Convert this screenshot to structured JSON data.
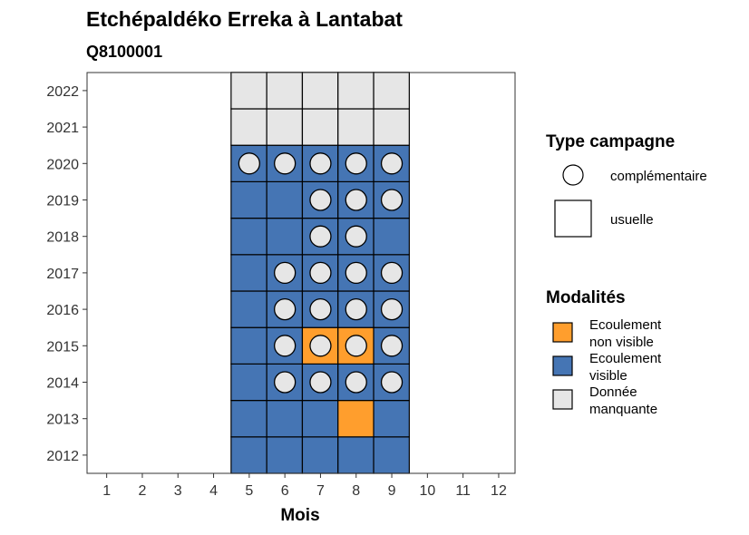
{
  "chart_data": {
    "type": "heatmap",
    "title": "Etchépaldéko Erreka à Lantabat",
    "subtitle": "Q8100001",
    "xlabel": "Mois",
    "ylabel": "",
    "x_categories": [
      "1",
      "2",
      "3",
      "4",
      "5",
      "6",
      "7",
      "8",
      "9",
      "10",
      "11",
      "12"
    ],
    "y_categories": [
      "2012",
      "2013",
      "2014",
      "2015",
      "2016",
      "2017",
      "2018",
      "2019",
      "2020",
      "2021",
      "2022"
    ],
    "grid": false,
    "legend_placement": "right",
    "modalites": [
      {
        "key": "nv",
        "label_lines": [
          "Ecoulement",
          "non visible"
        ],
        "color": "#ff9e2d"
      },
      {
        "key": "v",
        "label_lines": [
          "Ecoulement",
          "visible"
        ],
        "color": "#4575b4"
      },
      {
        "key": "na",
        "label_lines": [
          "Donnée",
          "manquante"
        ],
        "color": "#e6e6e6"
      }
    ],
    "campagnes": [
      {
        "key": "complementaire",
        "label": "complémentaire",
        "shape": "circle"
      },
      {
        "key": "usuelle",
        "label": "usuelle",
        "shape": "square"
      }
    ],
    "cells": [
      {
        "year": "2012",
        "month": "5",
        "modalite": "v",
        "campagne": "usuelle"
      },
      {
        "year": "2012",
        "month": "6",
        "modalite": "v",
        "campagne": "usuelle"
      },
      {
        "year": "2012",
        "month": "7",
        "modalite": "v",
        "campagne": "usuelle"
      },
      {
        "year": "2012",
        "month": "8",
        "modalite": "v",
        "campagne": "usuelle"
      },
      {
        "year": "2012",
        "month": "9",
        "modalite": "v",
        "campagne": "usuelle"
      },
      {
        "year": "2013",
        "month": "5",
        "modalite": "v",
        "campagne": "usuelle"
      },
      {
        "year": "2013",
        "month": "6",
        "modalite": "v",
        "campagne": "usuelle"
      },
      {
        "year": "2013",
        "month": "7",
        "modalite": "v",
        "campagne": "usuelle"
      },
      {
        "year": "2013",
        "month": "8",
        "modalite": "nv",
        "campagne": "usuelle"
      },
      {
        "year": "2013",
        "month": "9",
        "modalite": "v",
        "campagne": "usuelle"
      },
      {
        "year": "2014",
        "month": "5",
        "modalite": "v",
        "campagne": "usuelle"
      },
      {
        "year": "2014",
        "month": "6",
        "modalite": "v",
        "campagne": "usuelle"
      },
      {
        "year": "2014",
        "month": "7",
        "modalite": "v",
        "campagne": "usuelle"
      },
      {
        "year": "2014",
        "month": "8",
        "modalite": "v",
        "campagne": "usuelle"
      },
      {
        "year": "2014",
        "month": "9",
        "modalite": "v",
        "campagne": "usuelle"
      },
      {
        "year": "2015",
        "month": "5",
        "modalite": "v",
        "campagne": "usuelle"
      },
      {
        "year": "2015",
        "month": "6",
        "modalite": "v",
        "campagne": "usuelle"
      },
      {
        "year": "2015",
        "month": "7",
        "modalite": "nv",
        "campagne": "usuelle"
      },
      {
        "year": "2015",
        "month": "8",
        "modalite": "nv",
        "campagne": "usuelle"
      },
      {
        "year": "2015",
        "month": "9",
        "modalite": "v",
        "campagne": "usuelle"
      },
      {
        "year": "2016",
        "month": "5",
        "modalite": "v",
        "campagne": "usuelle"
      },
      {
        "year": "2016",
        "month": "6",
        "modalite": "v",
        "campagne": "usuelle"
      },
      {
        "year": "2016",
        "month": "7",
        "modalite": "v",
        "campagne": "usuelle"
      },
      {
        "year": "2016",
        "month": "8",
        "modalite": "v",
        "campagne": "usuelle"
      },
      {
        "year": "2016",
        "month": "9",
        "modalite": "v",
        "campagne": "usuelle"
      },
      {
        "year": "2017",
        "month": "5",
        "modalite": "v",
        "campagne": "usuelle"
      },
      {
        "year": "2017",
        "month": "6",
        "modalite": "v",
        "campagne": "usuelle"
      },
      {
        "year": "2017",
        "month": "7",
        "modalite": "v",
        "campagne": "usuelle"
      },
      {
        "year": "2017",
        "month": "8",
        "modalite": "v",
        "campagne": "usuelle"
      },
      {
        "year": "2017",
        "month": "9",
        "modalite": "v",
        "campagne": "usuelle"
      },
      {
        "year": "2018",
        "month": "5",
        "modalite": "v",
        "campagne": "usuelle"
      },
      {
        "year": "2018",
        "month": "6",
        "modalite": "v",
        "campagne": "usuelle"
      },
      {
        "year": "2018",
        "month": "7",
        "modalite": "v",
        "campagne": "usuelle"
      },
      {
        "year": "2018",
        "month": "8",
        "modalite": "v",
        "campagne": "usuelle"
      },
      {
        "year": "2018",
        "month": "9",
        "modalite": "v",
        "campagne": "usuelle"
      },
      {
        "year": "2019",
        "month": "5",
        "modalite": "v",
        "campagne": "usuelle"
      },
      {
        "year": "2019",
        "month": "6",
        "modalite": "v",
        "campagne": "usuelle"
      },
      {
        "year": "2019",
        "month": "7",
        "modalite": "v",
        "campagne": "usuelle"
      },
      {
        "year": "2019",
        "month": "8",
        "modalite": "v",
        "campagne": "usuelle"
      },
      {
        "year": "2019",
        "month": "9",
        "modalite": "v",
        "campagne": "usuelle"
      },
      {
        "year": "2020",
        "month": "5",
        "modalite": "v",
        "campagne": "usuelle"
      },
      {
        "year": "2020",
        "month": "6",
        "modalite": "v",
        "campagne": "usuelle"
      },
      {
        "year": "2020",
        "month": "7",
        "modalite": "v",
        "campagne": "usuelle"
      },
      {
        "year": "2020",
        "month": "8",
        "modalite": "v",
        "campagne": "usuelle"
      },
      {
        "year": "2020",
        "month": "9",
        "modalite": "v",
        "campagne": "usuelle"
      },
      {
        "year": "2021",
        "month": "5",
        "modalite": "na",
        "campagne": "usuelle"
      },
      {
        "year": "2021",
        "month": "6",
        "modalite": "na",
        "campagne": "usuelle"
      },
      {
        "year": "2021",
        "month": "7",
        "modalite": "na",
        "campagne": "usuelle"
      },
      {
        "year": "2021",
        "month": "8",
        "modalite": "na",
        "campagne": "usuelle"
      },
      {
        "year": "2021",
        "month": "9",
        "modalite": "na",
        "campagne": "usuelle"
      },
      {
        "year": "2022",
        "month": "5",
        "modalite": "na",
        "campagne": "usuelle"
      },
      {
        "year": "2022",
        "month": "6",
        "modalite": "na",
        "campagne": "usuelle"
      },
      {
        "year": "2022",
        "month": "7",
        "modalite": "na",
        "campagne": "usuelle"
      },
      {
        "year": "2022",
        "month": "8",
        "modalite": "na",
        "campagne": "usuelle"
      },
      {
        "year": "2022",
        "month": "9",
        "modalite": "na",
        "campagne": "usuelle"
      }
    ],
    "circles": [
      {
        "year": "2014",
        "month": "6",
        "modalite": "na",
        "campagne": "complementaire"
      },
      {
        "year": "2014",
        "month": "7",
        "modalite": "na",
        "campagne": "complementaire"
      },
      {
        "year": "2014",
        "month": "8",
        "modalite": "na",
        "campagne": "complementaire"
      },
      {
        "year": "2014",
        "month": "9",
        "modalite": "na",
        "campagne": "complementaire"
      },
      {
        "year": "2015",
        "month": "6",
        "modalite": "na",
        "campagne": "complementaire"
      },
      {
        "year": "2015",
        "month": "7",
        "modalite": "na",
        "campagne": "complementaire"
      },
      {
        "year": "2015",
        "month": "8",
        "modalite": "na",
        "campagne": "complementaire"
      },
      {
        "year": "2015",
        "month": "9",
        "modalite": "na",
        "campagne": "complementaire"
      },
      {
        "year": "2016",
        "month": "6",
        "modalite": "na",
        "campagne": "complementaire"
      },
      {
        "year": "2016",
        "month": "7",
        "modalite": "na",
        "campagne": "complementaire"
      },
      {
        "year": "2016",
        "month": "8",
        "modalite": "na",
        "campagne": "complementaire"
      },
      {
        "year": "2016",
        "month": "9",
        "modalite": "na",
        "campagne": "complementaire"
      },
      {
        "year": "2017",
        "month": "6",
        "modalite": "na",
        "campagne": "complementaire"
      },
      {
        "year": "2017",
        "month": "7",
        "modalite": "na",
        "campagne": "complementaire"
      },
      {
        "year": "2017",
        "month": "8",
        "modalite": "na",
        "campagne": "complementaire"
      },
      {
        "year": "2017",
        "month": "9",
        "modalite": "na",
        "campagne": "complementaire"
      },
      {
        "year": "2018",
        "month": "7",
        "modalite": "na",
        "campagne": "complementaire"
      },
      {
        "year": "2018",
        "month": "8",
        "modalite": "na",
        "campagne": "complementaire"
      },
      {
        "year": "2019",
        "month": "7",
        "modalite": "na",
        "campagne": "complementaire"
      },
      {
        "year": "2019",
        "month": "8",
        "modalite": "na",
        "campagne": "complementaire"
      },
      {
        "year": "2019",
        "month": "9",
        "modalite": "na",
        "campagne": "complementaire"
      },
      {
        "year": "2020",
        "month": "5",
        "modalite": "na",
        "campagne": "complementaire"
      },
      {
        "year": "2020",
        "month": "6",
        "modalite": "na",
        "campagne": "complementaire"
      },
      {
        "year": "2020",
        "month": "7",
        "modalite": "na",
        "campagne": "complementaire"
      },
      {
        "year": "2020",
        "month": "8",
        "modalite": "na",
        "campagne": "complementaire"
      },
      {
        "year": "2020",
        "month": "9",
        "modalite": "na",
        "campagne": "complementaire"
      }
    ]
  },
  "legend": {
    "campagne_title": "Type campagne",
    "modalites_title": "Modalités"
  }
}
